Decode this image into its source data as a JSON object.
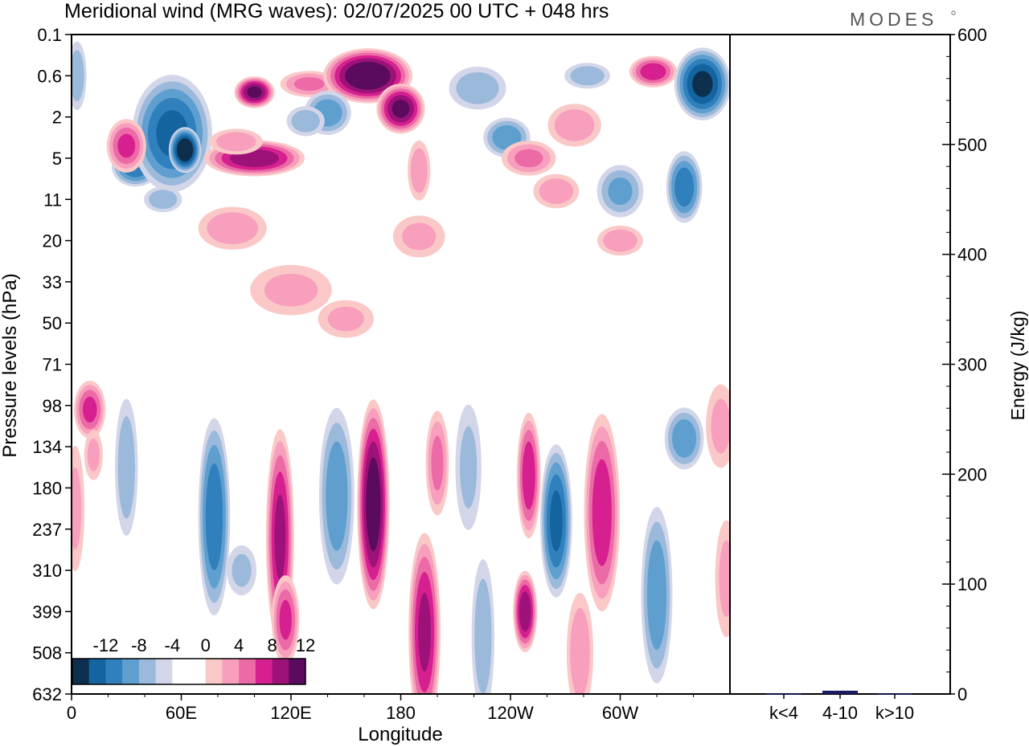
{
  "title": "Meridional wind (MRG waves):  02/07/2025  00 UTC  + 048 hrs",
  "brand": "MODES",
  "chart_data": [
    {
      "type": "heatmap",
      "xlabel": "Longitude",
      "ylabel": "Pressure levels (hPa)",
      "x_ticks": [
        "0",
        "60E",
        "120E",
        "180",
        "120W",
        "60W"
      ],
      "x_tick_values": [
        0,
        60,
        120,
        180,
        240,
        300
      ],
      "xlim": [
        0,
        360
      ],
      "y_ticks": [
        "0.1",
        "0.6",
        "2",
        "5",
        "11",
        "20",
        "33",
        "50",
        "71",
        "98",
        "134",
        "180",
        "237",
        "310",
        "399",
        "508",
        "632"
      ],
      "colorbar": {
        "labels": [
          "-12",
          "-8",
          "-4",
          "0",
          "4",
          "8",
          "12"
        ],
        "colors": [
          "#0d2f4e",
          "#1464a0",
          "#2f80bd",
          "#5e9fcf",
          "#9ab9db",
          "#d2d6e8",
          "#ffffff",
          "#ffffff",
          "#fbc8c8",
          "#f79fbd",
          "#ec6aa6",
          "#d6208f",
          "#9c1279",
          "#5a0b5e"
        ]
      },
      "blobs": [
        {
          "lon": 35,
          "lev": 12.8,
          "w": 12,
          "h": 0.45,
          "v": -9
        },
        {
          "lon": 55,
          "lev": 13.6,
          "w": 20,
          "h": 1.3,
          "v": -10
        },
        {
          "lon": 62,
          "lev": 13.2,
          "w": 8,
          "h": 0.5,
          "v": -14
        },
        {
          "lon": 3,
          "lev": 15.0,
          "w": 5,
          "h": 0.8,
          "v": -5
        },
        {
          "lon": 100,
          "lev": 14.6,
          "w": 10,
          "h": 0.35,
          "v": 12
        },
        {
          "lon": 100,
          "lev": 13.0,
          "w": 25,
          "h": 0.4,
          "v": 11
        },
        {
          "lon": 90,
          "lev": 13.4,
          "w": 14,
          "h": 0.3,
          "v": 5
        },
        {
          "lon": 130,
          "lev": 14.8,
          "w": 15,
          "h": 0.3,
          "v": 6
        },
        {
          "lon": 162,
          "lev": 15.0,
          "w": 22,
          "h": 0.6,
          "v": 14
        },
        {
          "lon": 180,
          "lev": 14.2,
          "w": 12,
          "h": 0.55,
          "v": 12
        },
        {
          "lon": 140,
          "lev": 14.1,
          "w": 12,
          "h": 0.5,
          "v": -7
        },
        {
          "lon": 128,
          "lev": 13.9,
          "w": 10,
          "h": 0.35,
          "v": -5
        },
        {
          "lon": 30,
          "lev": 13.3,
          "w": 10,
          "h": 0.6,
          "v": 8
        },
        {
          "lon": 222,
          "lev": 14.7,
          "w": 15,
          "h": 0.5,
          "v": -5
        },
        {
          "lon": 238,
          "lev": 13.5,
          "w": 12,
          "h": 0.45,
          "v": -7
        },
        {
          "lon": 275,
          "lev": 13.8,
          "w": 14,
          "h": 0.5,
          "v": 5
        },
        {
          "lon": 250,
          "lev": 13.0,
          "w": 14,
          "h": 0.4,
          "v": 6
        },
        {
          "lon": 318,
          "lev": 15.1,
          "w": 12,
          "h": 0.35,
          "v": 9
        },
        {
          "lon": 282,
          "lev": 15.0,
          "w": 12,
          "h": 0.3,
          "v": -5
        },
        {
          "lon": 345,
          "lev": 14.8,
          "w": 14,
          "h": 0.8,
          "v": -12
        },
        {
          "lon": 335,
          "lev": 12.3,
          "w": 9,
          "h": 0.8,
          "v": -9
        },
        {
          "lon": 300,
          "lev": 12.2,
          "w": 12,
          "h": 0.6,
          "v": -6
        },
        {
          "lon": 265,
          "lev": 12.2,
          "w": 12,
          "h": 0.4,
          "v": 5
        },
        {
          "lon": 190,
          "lev": 12.7,
          "w": 6,
          "h": 0.7,
          "v": 5
        },
        {
          "lon": 50,
          "lev": 12.0,
          "w": 10,
          "h": 0.3,
          "v": -5
        },
        {
          "lon": 88,
          "lev": 11.3,
          "w": 18,
          "h": 0.5,
          "v": 5
        },
        {
          "lon": 190,
          "lev": 11.1,
          "w": 14,
          "h": 0.5,
          "v": 4
        },
        {
          "lon": 300,
          "lev": 11.0,
          "w": 12,
          "h": 0.35,
          "v": 5
        },
        {
          "lon": 120,
          "lev": 9.8,
          "w": 22,
          "h": 0.6,
          "v": 4
        },
        {
          "lon": 150,
          "lev": 9.1,
          "w": 15,
          "h": 0.45,
          "v": 4
        },
        {
          "lon": 10,
          "lev": 6.9,
          "w": 8,
          "h": 0.65,
          "v": 8
        },
        {
          "lon": 30,
          "lev": 5.5,
          "w": 6,
          "h": 1.6,
          "v": -5
        },
        {
          "lon": 78,
          "lev": 4.3,
          "w": 8,
          "h": 2.2,
          "v": -9
        },
        {
          "lon": 93,
          "lev": 3.0,
          "w": 8,
          "h": 0.6,
          "v": -4
        },
        {
          "lon": 114,
          "lev": 3.8,
          "w": 7,
          "h": 2.4,
          "v": 10
        },
        {
          "lon": 117,
          "lev": 1.8,
          "w": 7,
          "h": 1.0,
          "v": 8
        },
        {
          "lon": 145,
          "lev": 4.8,
          "w": 9,
          "h": 2.0,
          "v": -7
        },
        {
          "lon": 165,
          "lev": 4.6,
          "w": 8,
          "h": 2.3,
          "v": 13
        },
        {
          "lon": 193,
          "lev": 1.5,
          "w": 8,
          "h": 2.2,
          "v": 10
        },
        {
          "lon": 200,
          "lev": 5.6,
          "w": 6,
          "h": 1.2,
          "v": 6
        },
        {
          "lon": 217,
          "lev": 5.5,
          "w": 7,
          "h": 1.5,
          "v": -4
        },
        {
          "lon": 225,
          "lev": 1.4,
          "w": 6,
          "h": 1.8,
          "v": -5
        },
        {
          "lon": 250,
          "lev": 5.3,
          "w": 6,
          "h": 1.4,
          "v": 9
        },
        {
          "lon": 248,
          "lev": 2.0,
          "w": 6,
          "h": 0.9,
          "v": 11
        },
        {
          "lon": 265,
          "lev": 4.2,
          "w": 8,
          "h": 1.7,
          "v": -10
        },
        {
          "lon": 290,
          "lev": 4.4,
          "w": 9,
          "h": 2.2,
          "v": 9
        },
        {
          "lon": 278,
          "lev": 1.0,
          "w": 7,
          "h": 1.4,
          "v": 5
        },
        {
          "lon": 320,
          "lev": 2.4,
          "w": 8,
          "h": 2.0,
          "v": -7
        },
        {
          "lon": 335,
          "lev": 6.2,
          "w": 10,
          "h": 0.7,
          "v": -7
        },
        {
          "lon": 355,
          "lev": 6.5,
          "w": 8,
          "h": 1.0,
          "v": 4
        },
        {
          "lon": 358,
          "lev": 2.8,
          "w": 6,
          "h": 1.4,
          "v": 4
        },
        {
          "lon": 12,
          "lev": 5.8,
          "w": 5,
          "h": 0.6,
          "v": 4
        },
        {
          "lon": 2,
          "lev": 4.5,
          "w": 5,
          "h": 1.5,
          "v": 4
        }
      ]
    },
    {
      "type": "bar",
      "ylabel": "Energy (J/kg)",
      "categories": [
        "k<4",
        "4-10",
        "k>10"
      ],
      "values": [
        0.5,
        3,
        0.5
      ],
      "ylim": [
        0,
        600
      ],
      "y_ticks": [
        "0",
        "100",
        "200",
        "300",
        "400",
        "500",
        "600"
      ],
      "bar_color": "#1a1a66"
    }
  ]
}
